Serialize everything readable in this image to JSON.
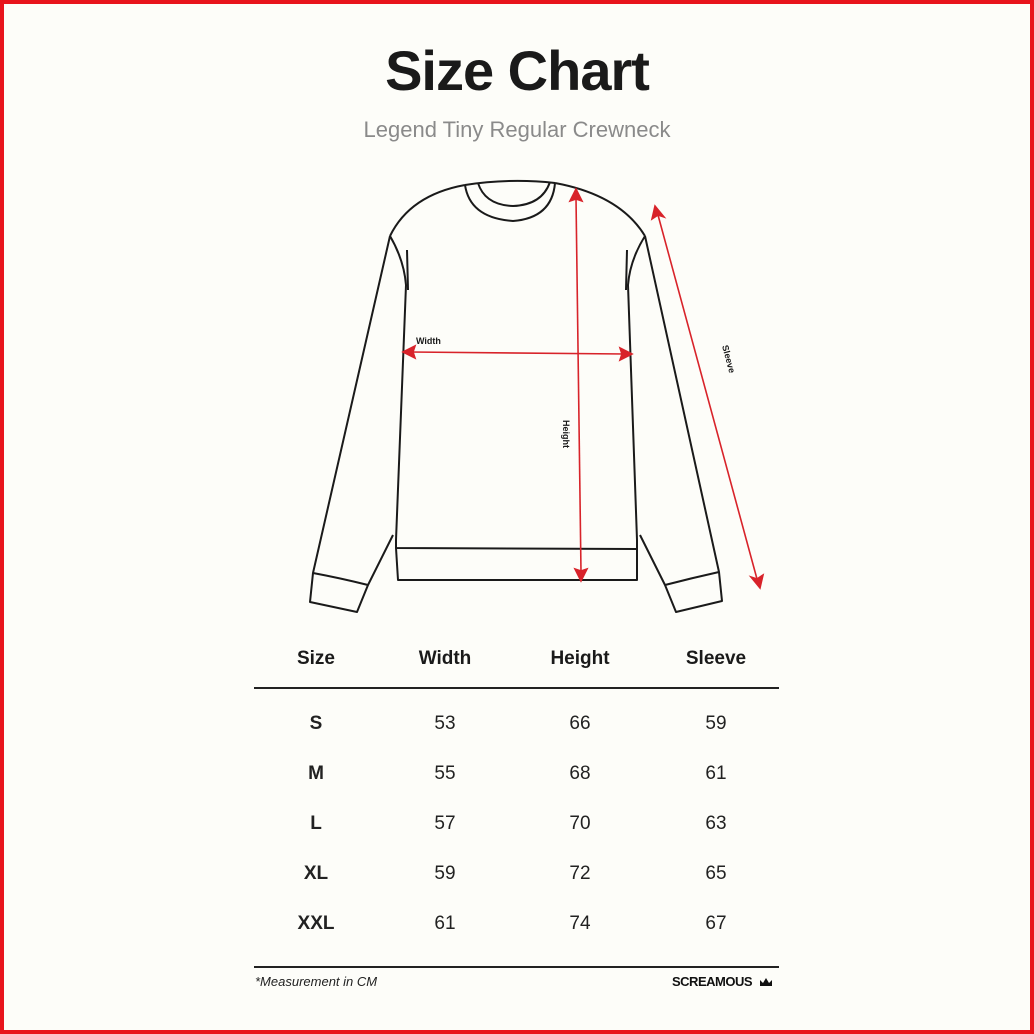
{
  "title": "Size Chart",
  "subtitle": "Legend Tiny Regular Crewneck",
  "diagram": {
    "labels": {
      "width": "Width",
      "height": "Height",
      "sleeve": "Sleeve"
    },
    "arrow_color": "#d8232a"
  },
  "table": {
    "headers": [
      "Size",
      "Width",
      "Height",
      "Sleeve"
    ],
    "rows": [
      [
        "S",
        "53",
        "66",
        "59"
      ],
      [
        "M",
        "55",
        "68",
        "61"
      ],
      [
        "L",
        "57",
        "70",
        "63"
      ],
      [
        "XL",
        "59",
        "72",
        "65"
      ],
      [
        "XXL",
        "61",
        "74",
        "67"
      ]
    ]
  },
  "footer": {
    "note": "*Measurement in CM",
    "brand": "SCREAMOUS"
  },
  "border_color": "#e8141c"
}
